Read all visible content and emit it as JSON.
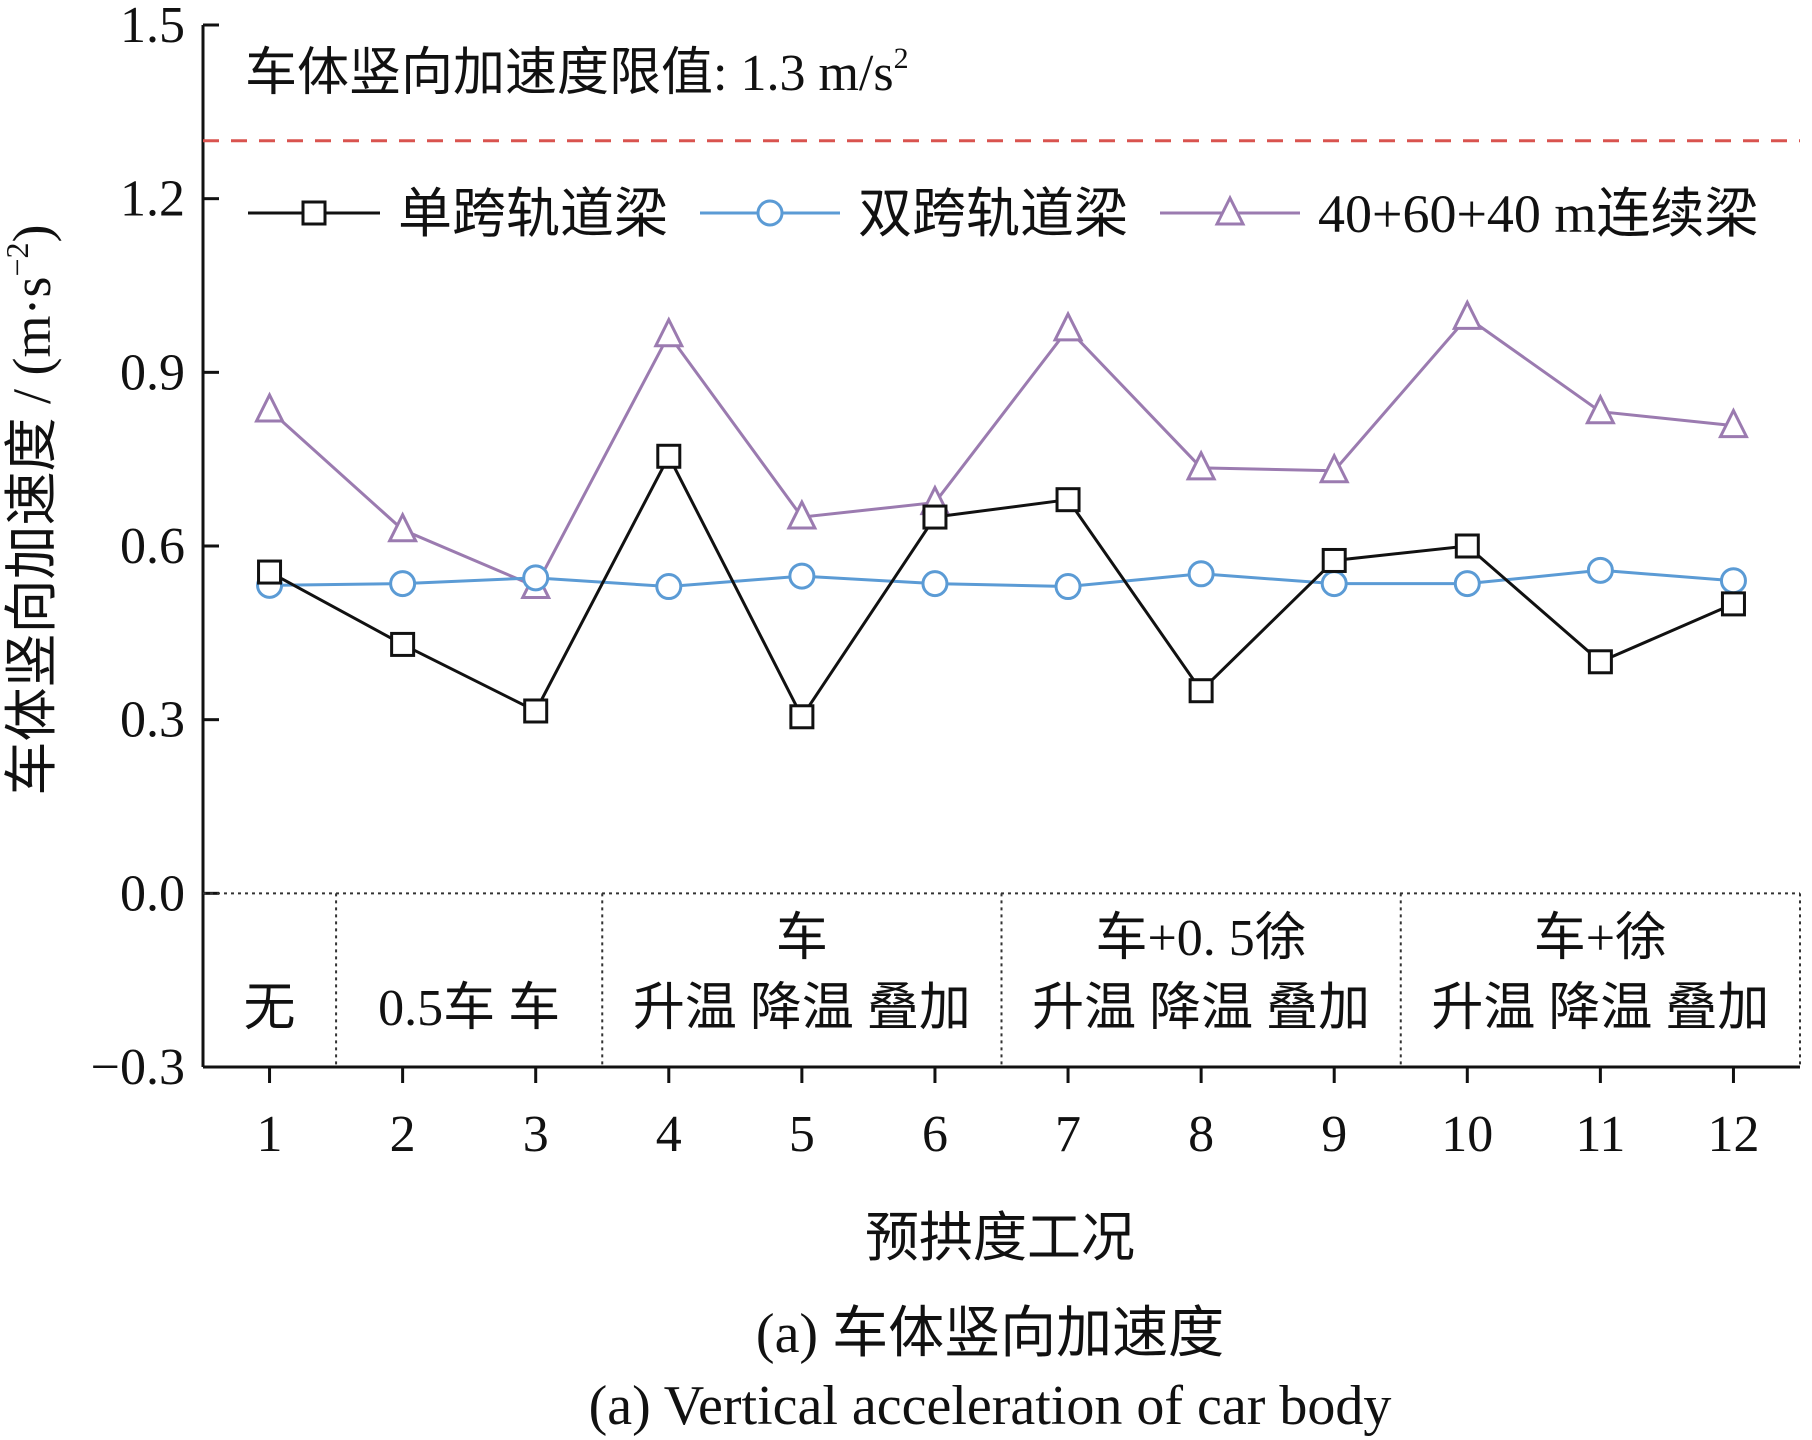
{
  "chart_data": {
    "type": "line",
    "title": "",
    "xlabel": "预拱度工况",
    "ylabel": "车体竖向加速度 / (m·s",
    "ylabel_sup": "−2",
    "ylabel_close": ")",
    "x": [
      1,
      2,
      3,
      4,
      5,
      6,
      7,
      8,
      9,
      10,
      11,
      12
    ],
    "xlim": [
      0.5,
      12.5
    ],
    "ylim": [
      -0.3,
      1.5
    ],
    "yticks": [
      -0.3,
      0.0,
      0.3,
      0.6,
      0.9,
      1.2,
      1.5
    ],
    "ytick_labels": [
      "−0.3",
      "0.0",
      "0.3",
      "0.6",
      "0.9",
      "1.2",
      "1.5"
    ],
    "series": [
      {
        "name": "单跨轨道梁",
        "marker": "square",
        "color": "#111111",
        "values": [
          0.555,
          0.43,
          0.315,
          0.755,
          0.305,
          0.65,
          0.68,
          0.35,
          0.575,
          0.6,
          0.4,
          0.5
        ]
      },
      {
        "name": "双跨轨道梁",
        "marker": "circle",
        "color": "#5b9bd5",
        "values": [
          0.532,
          0.535,
          0.545,
          0.53,
          0.548,
          0.535,
          0.53,
          0.552,
          0.535,
          0.535,
          0.558,
          0.54
        ]
      },
      {
        "name": "40+60+40 m连续梁",
        "marker": "triangle",
        "color": "#9b7bb0",
        "values": [
          0.835,
          0.628,
          0.53,
          0.965,
          0.65,
          0.675,
          0.975,
          0.735,
          0.73,
          0.995,
          0.832,
          0.808
        ]
      }
    ],
    "limit_line": {
      "value": 1.3,
      "color": "#d9534f",
      "label": "车体竖向加速度限值: 1.3 m/s",
      "label_sup": "2"
    },
    "legend_position": "upper area, single row",
    "grid": false,
    "condition_groups": [
      {
        "x_start": 0.5,
        "x_end": 1.5,
        "lines": [
          "无"
        ]
      },
      {
        "x_start": 1.5,
        "x_end": 3.5,
        "lines": [
          "0.5车  车"
        ]
      },
      {
        "x_start": 3.5,
        "x_end": 6.5,
        "lines": [
          "车",
          "升温 降温 叠加"
        ]
      },
      {
        "x_start": 6.5,
        "x_end": 9.5,
        "lines": [
          "车+0. 5徐",
          "升温 降温 叠加"
        ]
      },
      {
        "x_start": 9.5,
        "x_end": 12.5,
        "lines": [
          "车+徐",
          "升温 降温 叠加"
        ]
      }
    ]
  },
  "caption": {
    "zh": "(a) 车体竖向加速度",
    "en": "(a) Vertical acceleration of car body"
  }
}
